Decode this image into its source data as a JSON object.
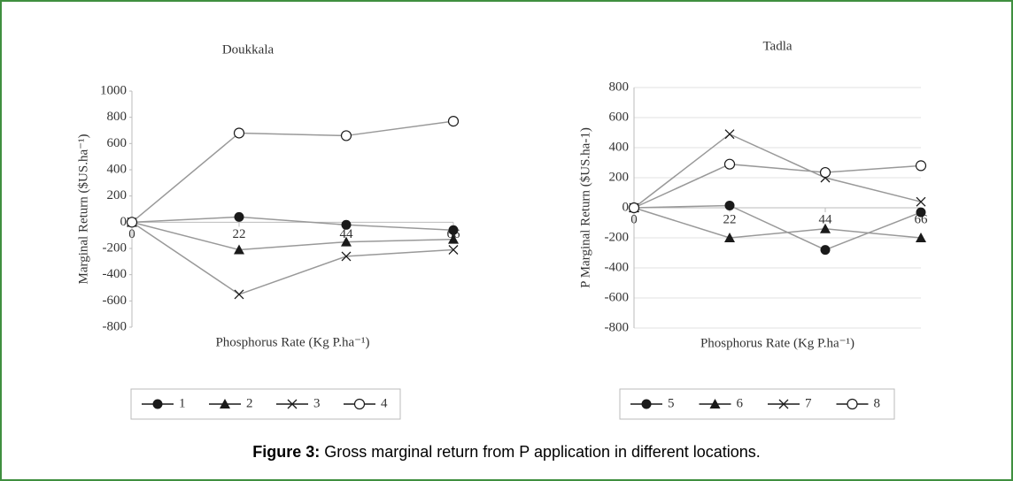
{
  "chart_data": [
    {
      "type": "line",
      "title": "Doukkala",
      "x_label": "Phosphorus Rate (Kg P.ha⁻¹)",
      "y_label": "Marginal Return ($US.ha⁻¹)",
      "x": [
        0,
        22,
        44,
        66
      ],
      "xlim": [
        0,
        66
      ],
      "xticks": [
        0,
        22,
        44,
        66
      ],
      "ylim": [
        -800,
        1000
      ],
      "yticks": [
        -800,
        -600,
        -400,
        -200,
        0,
        200,
        400,
        600,
        800,
        1000
      ],
      "grid": false,
      "line_color": "#999999",
      "legend": "bottom",
      "series": [
        {
          "name": "1",
          "color": "#1a1a1a",
          "marker": "circle-filled",
          "values": [
            0,
            40,
            -20,
            -60
          ]
        },
        {
          "name": "2",
          "color": "#1a1a1a",
          "marker": "triangle",
          "values": [
            0,
            -210,
            -150,
            -130
          ]
        },
        {
          "name": "3",
          "color": "#1a1a1a",
          "marker": "x",
          "values": [
            0,
            -550,
            -260,
            -210
          ]
        },
        {
          "name": "4",
          "color": "#1a1a1a",
          "marker": "circle-open",
          "values": [
            0,
            680,
            660,
            770
          ]
        }
      ]
    },
    {
      "type": "line",
      "title": "Tadla",
      "x_label": "Phosphorus Rate (Kg P.ha⁻¹)",
      "y_label": "P Marginal Return ($US.ha-1)",
      "x": [
        0,
        22,
        44,
        66
      ],
      "xlim": [
        0,
        66
      ],
      "xticks": [
        0,
        22,
        44,
        66
      ],
      "ylim": [
        -800,
        800
      ],
      "yticks": [
        -800,
        -600,
        -400,
        -200,
        0,
        200,
        400,
        600,
        800
      ],
      "grid": true,
      "line_color": "#999999",
      "legend": "bottom",
      "series": [
        {
          "name": "5",
          "color": "#1a1a1a",
          "marker": "circle-filled",
          "values": [
            0,
            15,
            -280,
            -30
          ]
        },
        {
          "name": "6",
          "color": "#1a1a1a",
          "marker": "triangle",
          "values": [
            0,
            -200,
            -140,
            -200
          ]
        },
        {
          "name": "7",
          "color": "#1a1a1a",
          "marker": "x",
          "values": [
            0,
            490,
            200,
            40
          ]
        },
        {
          "name": "8",
          "color": "#1a1a1a",
          "marker": "circle-open",
          "values": [
            0,
            290,
            235,
            280
          ]
        }
      ]
    }
  ],
  "caption": {
    "label": "Figure 3:",
    "text": "Gross marginal return from P application in different locations."
  }
}
